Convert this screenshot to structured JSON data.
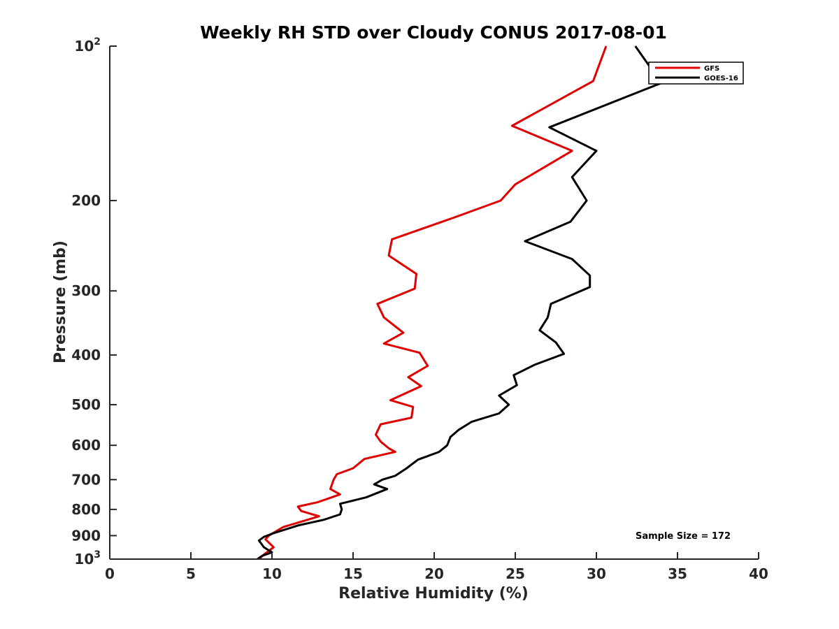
{
  "chart_data": {
    "type": "line",
    "title": "Weekly RH STD over Cloudy CONUS 2017-08-01",
    "xlabel": "Relative Humidity (%)",
    "ylabel": "Pressure (mb)",
    "xlim": [
      0,
      40
    ],
    "ylim": [
      100,
      1000
    ],
    "yscale": "log",
    "y_reversed": true,
    "grid": false,
    "legend_position": "top-right",
    "xticks": [
      {
        "value": 0,
        "label": "0"
      },
      {
        "value": 5,
        "label": "5"
      },
      {
        "value": 10,
        "label": "10"
      },
      {
        "value": 15,
        "label": "15"
      },
      {
        "value": 20,
        "label": "20"
      },
      {
        "value": 25,
        "label": "25"
      },
      {
        "value": 30,
        "label": "30"
      },
      {
        "value": 35,
        "label": "35"
      },
      {
        "value": 40,
        "label": "40"
      }
    ],
    "yticks": [
      {
        "value": 100,
        "label": "10",
        "sup": "2"
      },
      {
        "value": 200,
        "label": "200",
        "sup": ""
      },
      {
        "value": 300,
        "label": "300",
        "sup": ""
      },
      {
        "value": 400,
        "label": "400",
        "sup": ""
      },
      {
        "value": 500,
        "label": "500",
        "sup": ""
      },
      {
        "value": 600,
        "label": "600",
        "sup": ""
      },
      {
        "value": 700,
        "label": "700",
        "sup": ""
      },
      {
        "value": 800,
        "label": "800",
        "sup": ""
      },
      {
        "value": 900,
        "label": "900",
        "sup": ""
      },
      {
        "value": 1000,
        "label": "10",
        "sup": "3"
      }
    ],
    "series": [
      {
        "name": "GFS",
        "color": "#e00000",
        "points": [
          [
            30.6,
            100
          ],
          [
            29.8,
            117
          ],
          [
            24.8,
            143
          ],
          [
            28.5,
            160
          ],
          [
            25.0,
            186
          ],
          [
            24.1,
            200
          ],
          [
            21.2,
            216
          ],
          [
            17.4,
            238
          ],
          [
            17.2,
            256
          ],
          [
            18.9,
            278
          ],
          [
            18.8,
            297
          ],
          [
            16.5,
            318
          ],
          [
            16.9,
            338
          ],
          [
            18.1,
            362
          ],
          [
            16.9,
            380
          ],
          [
            19.1,
            396
          ],
          [
            19.6,
            420
          ],
          [
            18.4,
            442
          ],
          [
            19.2,
            460
          ],
          [
            17.3,
            490
          ],
          [
            18.7,
            505
          ],
          [
            18.6,
            530
          ],
          [
            16.7,
            546
          ],
          [
            16.4,
            572
          ],
          [
            16.7,
            590
          ],
          [
            17.2,
            608
          ],
          [
            17.6,
            618
          ],
          [
            15.7,
            638
          ],
          [
            15.0,
            665
          ],
          [
            14.0,
            683
          ],
          [
            13.8,
            700
          ],
          [
            13.6,
            730
          ],
          [
            14.2,
            748
          ],
          [
            12.8,
            775
          ],
          [
            11.6,
            790
          ],
          [
            11.8,
            806
          ],
          [
            12.9,
            825
          ],
          [
            12.2,
            838
          ],
          [
            10.7,
            866
          ],
          [
            9.8,
            900
          ],
          [
            9.6,
            915
          ],
          [
            10.1,
            948
          ],
          [
            9.5,
            980
          ],
          [
            9.2,
            1000
          ]
        ]
      },
      {
        "name": "GOES-16",
        "color": "#000000",
        "points": [
          [
            32.4,
            100
          ],
          [
            34.0,
            118
          ],
          [
            27.1,
            144
          ],
          [
            30.0,
            160
          ],
          [
            28.5,
            180
          ],
          [
            29.4,
            200
          ],
          [
            28.4,
            220
          ],
          [
            25.6,
            240
          ],
          [
            28.5,
            260
          ],
          [
            29.6,
            280
          ],
          [
            29.6,
            295
          ],
          [
            27.2,
            318
          ],
          [
            27.0,
            338
          ],
          [
            26.5,
            358
          ],
          [
            27.5,
            378
          ],
          [
            28.0,
            398
          ],
          [
            26.2,
            418
          ],
          [
            24.9,
            438
          ],
          [
            25.1,
            458
          ],
          [
            24.0,
            480
          ],
          [
            24.6,
            500
          ],
          [
            24.0,
            520
          ],
          [
            22.3,
            540
          ],
          [
            21.5,
            560
          ],
          [
            21.0,
            578
          ],
          [
            20.8,
            600
          ],
          [
            20.3,
            618
          ],
          [
            19.0,
            640
          ],
          [
            18.3,
            665
          ],
          [
            17.6,
            688
          ],
          [
            16.8,
            700
          ],
          [
            16.3,
            715
          ],
          [
            17.1,
            730
          ],
          [
            15.8,
            758
          ],
          [
            14.2,
            780
          ],
          [
            14.3,
            800
          ],
          [
            14.2,
            818
          ],
          [
            13.2,
            838
          ],
          [
            11.6,
            860
          ],
          [
            10.1,
            890
          ],
          [
            9.5,
            905
          ],
          [
            9.2,
            920
          ],
          [
            9.5,
            948
          ],
          [
            10.0,
            970
          ],
          [
            9.4,
            985
          ],
          [
            9.1,
            1000
          ]
        ]
      }
    ],
    "annotations": [
      {
        "text": "Sample Size = 172"
      }
    ]
  }
}
